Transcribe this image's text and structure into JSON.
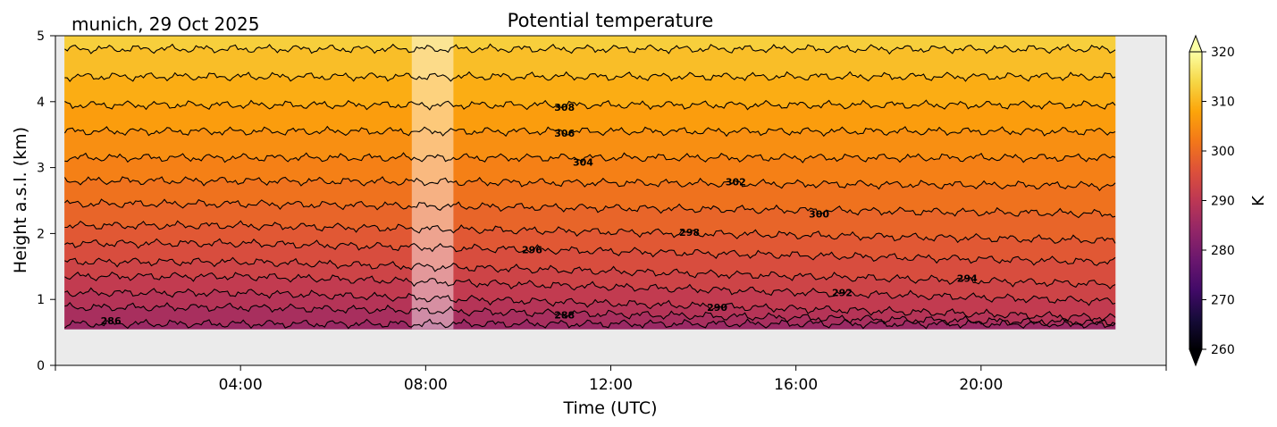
{
  "header": {
    "title": "Potential temperature",
    "location_date": "munich, 29 Oct 2025"
  },
  "chart_data": {
    "type": "heatmap",
    "title": "Potential temperature",
    "subtitle": "munich, 29 Oct 2025",
    "xlabel": "Time (UTC)",
    "ylabel": "Height a.s.l. (km)",
    "xlim": [
      0,
      24
    ],
    "ylim": [
      0,
      5
    ],
    "x_ticks": [
      {
        "value": 4,
        "label": "04:00"
      },
      {
        "value": 8,
        "label": "08:00"
      },
      {
        "value": 12,
        "label": "12:00"
      },
      {
        "value": 16,
        "label": "16:00"
      },
      {
        "value": 20,
        "label": "20:00"
      }
    ],
    "y_ticks": [
      {
        "value": 0,
        "label": "0"
      },
      {
        "value": 1,
        "label": "1"
      },
      {
        "value": 2,
        "label": "2"
      },
      {
        "value": 3,
        "label": "3"
      },
      {
        "value": 4,
        "label": "4"
      },
      {
        "value": 5,
        "label": "5"
      }
    ],
    "data_extent": {
      "x": [
        0.2,
        22.9
      ],
      "y": [
        0.55,
        5.0
      ]
    },
    "gap": {
      "x": [
        7.7,
        8.6
      ],
      "note": "lighter shaded band (no data)"
    },
    "colormap": "inferno",
    "colorbar": {
      "label": "K",
      "range": [
        260,
        320
      ],
      "extend": "both",
      "ticks": [
        {
          "value": 260,
          "label": "260"
        },
        {
          "value": 270,
          "label": "270"
        },
        {
          "value": 280,
          "label": "280"
        },
        {
          "value": 290,
          "label": "290"
        },
        {
          "value": 300,
          "label": "300"
        },
        {
          "value": 310,
          "label": "310"
        },
        {
          "value": 320,
          "label": "320"
        }
      ]
    },
    "contours": [
      {
        "theta": 286,
        "base_height": 0.63,
        "slope": 0.0,
        "label": "286",
        "label_x": 1.2
      },
      {
        "theta": 288,
        "base_height": 0.88,
        "slope": -0.013,
        "label": "288",
        "label_x": 11.0
      },
      {
        "theta": 290,
        "base_height": 1.1,
        "slope": -0.02,
        "label": "290",
        "label_x": 14.3
      },
      {
        "theta": 292,
        "base_height": 1.35,
        "slope": -0.02,
        "label": "292",
        "label_x": 17.0
      },
      {
        "theta": 294,
        "base_height": 1.57,
        "slope": -0.018,
        "label": "294",
        "label_x": 19.7
      },
      {
        "theta": 296,
        "base_height": 1.85,
        "slope": -0.015,
        "label": "296",
        "label_x": 10.3
      },
      {
        "theta": 298,
        "base_height": 2.12,
        "slope": -0.012,
        "label": "298",
        "label_x": 13.7
      },
      {
        "theta": 300,
        "base_height": 2.45,
        "slope": -0.008,
        "label": "300",
        "label_x": 16.5
      },
      {
        "theta": 302,
        "base_height": 2.8,
        "slope": -0.004,
        "label": "302",
        "label_x": 14.7
      },
      {
        "theta": 304,
        "base_height": 3.15,
        "slope": 0.0,
        "label": "304",
        "label_x": 11.4
      },
      {
        "theta": 306,
        "base_height": 3.55,
        "slope": 0.0,
        "label": "306",
        "label_x": 11.0
      },
      {
        "theta": 308,
        "base_height": 3.95,
        "slope": 0.0,
        "label": "308",
        "label_x": 11.0
      },
      {
        "theta": 310,
        "base_height": 4.38,
        "slope": 0.0,
        "label": "",
        "label_x": 0
      },
      {
        "theta": 312,
        "base_height": 4.8,
        "slope": 0.0,
        "label": "",
        "label_x": 0
      }
    ],
    "colors": {
      "background": "#ebebeb",
      "contour_line": "#000000"
    }
  }
}
